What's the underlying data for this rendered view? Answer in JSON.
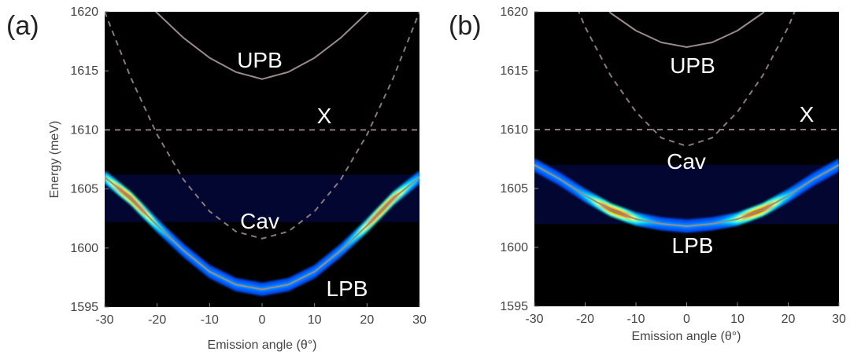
{
  "colors": {
    "background": "#000000",
    "polariton_line": "#9a8a8c",
    "bare_mode_line": "#8a7a7c",
    "text": "#ffffff",
    "axis_text": "#444444"
  },
  "colormap": "jet",
  "chart_data": [
    {
      "type": "heatmap",
      "panel_tag": "(a)",
      "xlabel": "Emission angle (θ°)",
      "ylabel": "Energy (meV)",
      "xlim": [
        -30,
        30
      ],
      "ylim": [
        1595,
        1620
      ],
      "x_ticks": [
        -30,
        -20,
        -10,
        0,
        10,
        20,
        30
      ],
      "y_ticks": [
        1595,
        1600,
        1605,
        1610,
        1615,
        1620
      ],
      "grid": false,
      "series": [
        {
          "name": "UPB",
          "style": "solid",
          "x": [
            -30,
            -25,
            -20,
            -15,
            -10,
            -5,
            0,
            5,
            10,
            15,
            20,
            25,
            30
          ],
          "y": [
            1625.6,
            1622.4,
            1619.9,
            1617.8,
            1616.1,
            1614.9,
            1614.3,
            1614.9,
            1616.1,
            1617.8,
            1619.9,
            1622.4,
            1625.6
          ]
        },
        {
          "name": "X",
          "style": "dashed",
          "x": [
            -30,
            30
          ],
          "y": [
            1610,
            1610
          ]
        },
        {
          "name": "Cav",
          "style": "dashed",
          "x": [
            -30,
            -25,
            -20,
            -15,
            -10,
            -5,
            0,
            5,
            10,
            15,
            20,
            25,
            30
          ],
          "y": [
            1620.0,
            1614.4,
            1609.6,
            1605.8,
            1603.1,
            1601.4,
            1600.8,
            1601.4,
            1603.1,
            1605.8,
            1609.6,
            1614.4,
            1620.0
          ]
        },
        {
          "name": "LPB",
          "style": "solid",
          "x": [
            -30,
            -25,
            -20,
            -15,
            -10,
            -5,
            0,
            5,
            10,
            15,
            20,
            25,
            30
          ],
          "y": [
            1606.0,
            1604.2,
            1601.9,
            1599.8,
            1598.0,
            1596.9,
            1596.5,
            1596.9,
            1598.0,
            1599.8,
            1601.9,
            1604.2,
            1606.0
          ]
        }
      ],
      "emission": {
        "along": "LPB",
        "peak_angles": [
          -25,
          23
        ],
        "weak_band": [
          1602.2,
          1606.2
        ]
      }
    },
    {
      "type": "heatmap",
      "panel_tag": "(b)",
      "xlabel": "Emission angle (θ°)",
      "ylabel": "",
      "xlim": [
        -30,
        30
      ],
      "ylim": [
        1595,
        1620
      ],
      "x_ticks": [
        -30,
        -20,
        -10,
        0,
        10,
        20,
        30
      ],
      "y_ticks": [
        1595,
        1600,
        1605,
        1610,
        1615,
        1620
      ],
      "grid": false,
      "series": [
        {
          "name": "UPB",
          "style": "solid",
          "x": [
            -30,
            -25,
            -20,
            -15,
            -10,
            -5,
            0,
            5,
            10,
            15,
            20,
            25,
            30
          ],
          "y": [
            1630.6,
            1626.0,
            1622.5,
            1619.9,
            1618.4,
            1617.4,
            1617.0,
            1617.4,
            1618.4,
            1619.9,
            1622.5,
            1626.0,
            1630.6
          ]
        },
        {
          "name": "X",
          "style": "dashed",
          "x": [
            -30,
            30
          ],
          "y": [
            1610,
            1610
          ]
        },
        {
          "name": "Cav",
          "style": "dashed",
          "x": [
            -30,
            -25,
            -20,
            -15,
            -10,
            -5,
            0,
            5,
            10,
            15,
            20,
            25,
            30
          ],
          "y": [
            1630.0,
            1623.9,
            1618.7,
            1614.6,
            1611.5,
            1609.3,
            1608.6,
            1609.3,
            1611.5,
            1614.6,
            1618.7,
            1623.9,
            1630.0
          ]
        },
        {
          "name": "LPB",
          "style": "solid",
          "x": [
            -30,
            -25,
            -20,
            -15,
            -10,
            -5,
            0,
            5,
            10,
            15,
            20,
            25,
            30
          ],
          "y": [
            1607.0,
            1605.8,
            1604.4,
            1603.2,
            1602.4,
            1602.0,
            1601.8,
            1602.0,
            1602.4,
            1603.2,
            1604.4,
            1605.8,
            1607.0
          ]
        }
      ],
      "emission": {
        "along": "LPB",
        "peak_angles": [
          -14,
          14
        ],
        "weak_band": [
          1602.0,
          1607.0
        ]
      }
    }
  ],
  "labels": {
    "a": {
      "upb": "UPB",
      "x": "X",
      "cav": "Cav",
      "lpb": "LPB"
    },
    "b": {
      "upb": "UPB",
      "x": "X",
      "cav": "Cav",
      "lpb": "LPB"
    }
  }
}
